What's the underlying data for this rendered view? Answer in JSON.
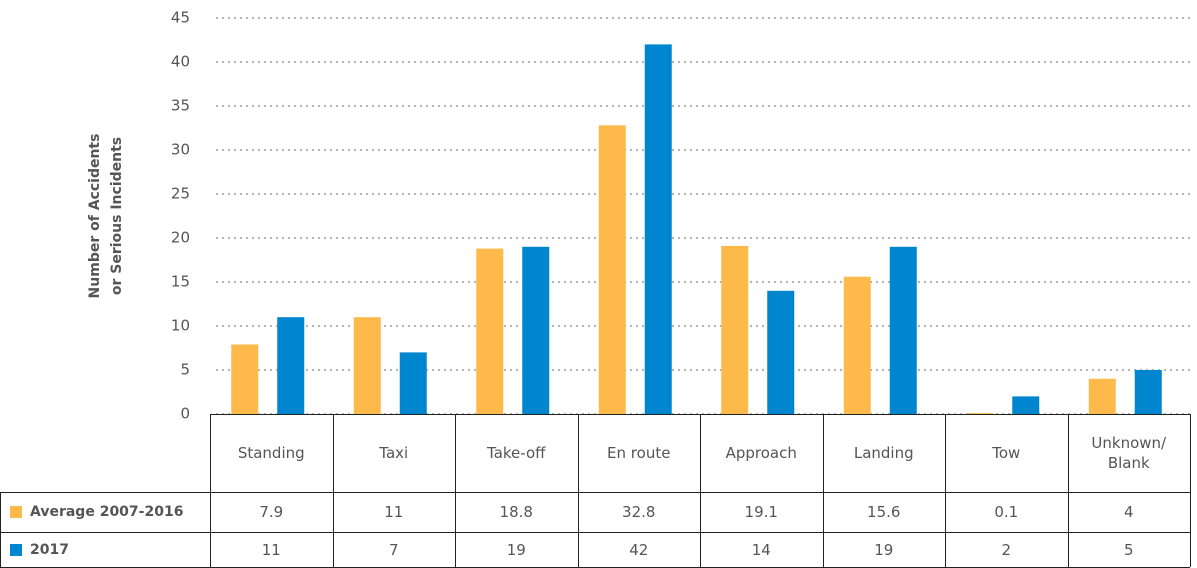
{
  "chart_data": {
    "type": "bar",
    "ylabel": [
      "Number of Accidents",
      "or Serious Incidents"
    ],
    "categories": [
      "Standing",
      "Taxi",
      "Take-off",
      "En route",
      "Approach",
      "Landing",
      "Tow",
      "Unknown/ Blank"
    ],
    "series": [
      {
        "name": "Average 2007-2016",
        "color": "#fdb94a",
        "values": [
          7.9,
          11,
          18.8,
          32.8,
          19.1,
          15.6,
          0.1,
          4
        ]
      },
      {
        "name": "2017",
        "color": "#0086ce",
        "values": [
          11,
          7,
          19,
          42,
          14,
          19,
          2,
          5
        ]
      }
    ],
    "ylim": [
      0,
      45
    ],
    "yticks": [
      0,
      5,
      10,
      15,
      20,
      25,
      30,
      35,
      40,
      45
    ],
    "grid": true
  }
}
